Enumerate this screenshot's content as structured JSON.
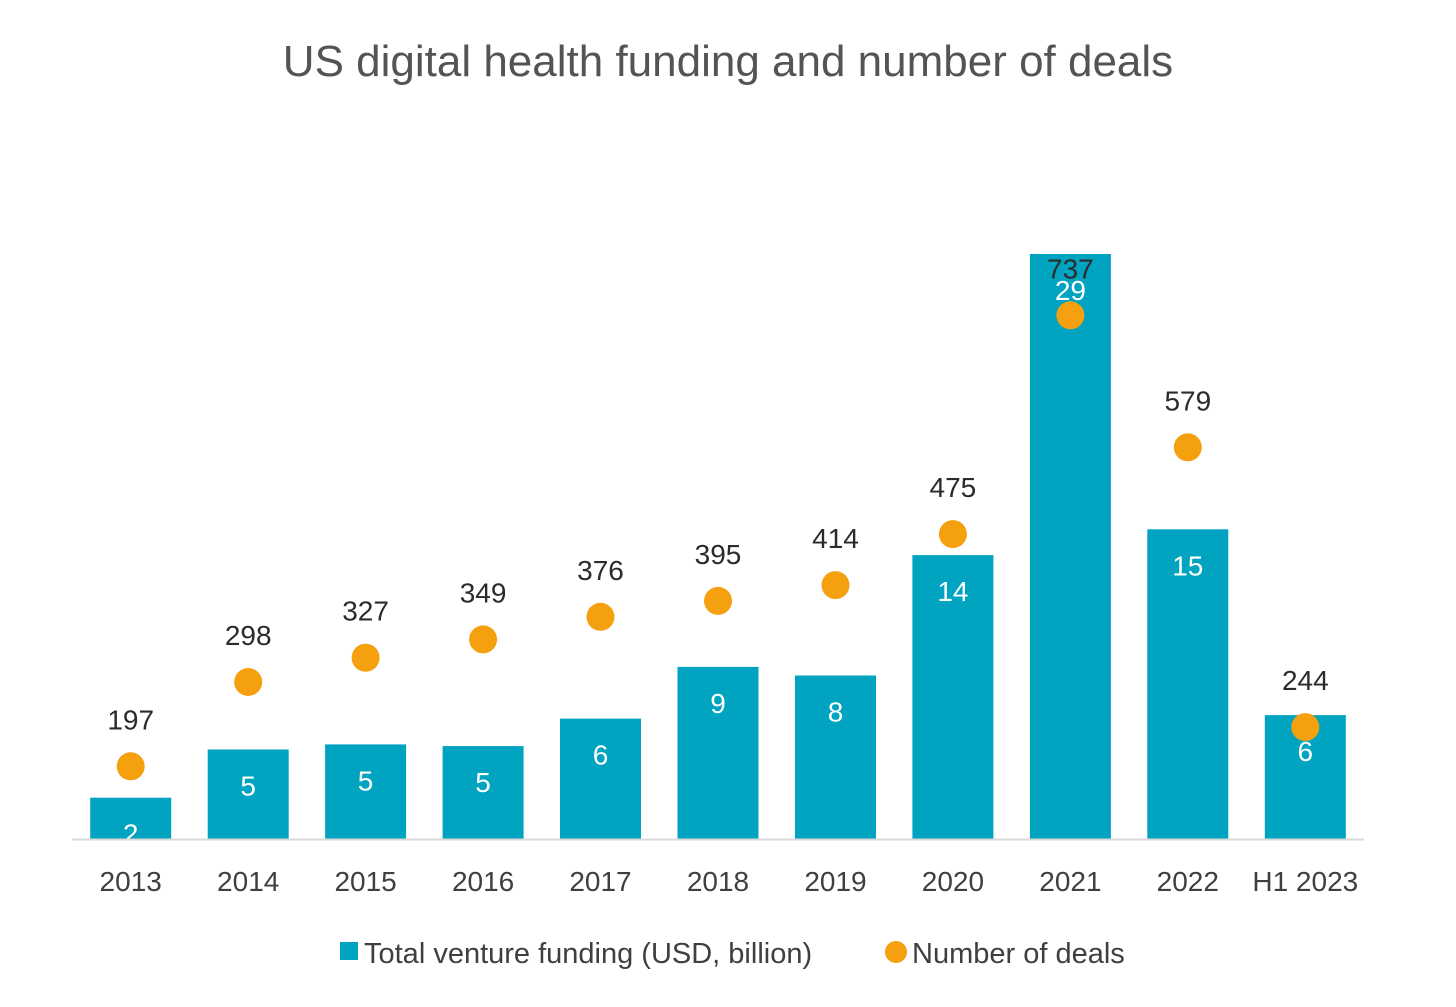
{
  "chart_data": {
    "type": "bar",
    "title": "US digital health funding and number of deals",
    "categories": [
      "2013",
      "2014",
      "2015",
      "2016",
      "2017",
      "2018",
      "2019",
      "2020",
      "2021",
      "2022",
      "H1 2023"
    ],
    "series": [
      {
        "name": "Total venture funding (USD, billion)",
        "type": "bar",
        "color": "#00a3c0",
        "values": [
          2,
          5,
          5,
          5,
          6,
          9,
          8,
          14,
          29,
          15,
          6
        ],
        "labels": [
          "2",
          "5",
          "5",
          "5",
          "6",
          "9",
          "8",
          "14",
          "29",
          "15",
          "6"
        ],
        "plot_values": [
          2.4,
          5.2,
          5.5,
          5.4,
          7.0,
          10.0,
          9.5,
          16.5,
          34.0,
          18.0,
          7.2
        ]
      },
      {
        "name": "Number of deals",
        "type": "scatter",
        "color": "#f5a00f",
        "values": [
          197,
          298,
          327,
          349,
          376,
          395,
          414,
          475,
          737,
          579,
          244
        ],
        "labels": [
          "197",
          "298",
          "327",
          "349",
          "376",
          "395",
          "414",
          "475",
          "737",
          "579",
          "244"
        ]
      }
    ],
    "bar_axis_range": [
      0,
      34
    ],
    "deals_axis_range": [
      0,
      887
    ],
    "axis_color": "#d9d9d9",
    "grid": false,
    "legend_position": "bottom"
  }
}
